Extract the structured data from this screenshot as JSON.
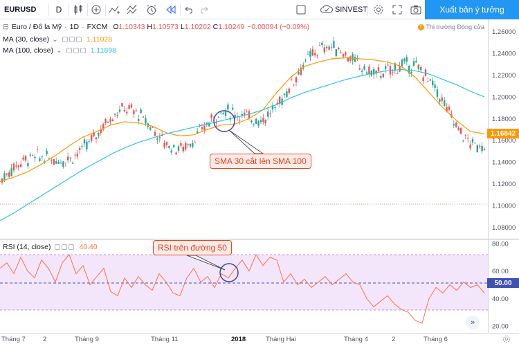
{
  "toolbar": {
    "symbol": "EURUSD",
    "interval": "D",
    "broker": "SINVEST",
    "publish_label": "Xuất bản ý tưởng",
    "icons": [
      "bar-style-icon",
      "add-compare-icon",
      "indicators-icon",
      "templates-icon",
      "alert-icon",
      "replay-icon",
      "undo-icon",
      "redo-icon",
      "layout-icon",
      "cloud-icon",
      "settings-icon",
      "fullscreen-icon",
      "snapshot-icon"
    ]
  },
  "legend": {
    "title": "Euro / Đô la Mỹ",
    "interval": "1D",
    "exchange": "FXCM",
    "ohlc": [
      {
        "k": "O",
        "v": "1.10343"
      },
      {
        "k": "H",
        "v": "1.10573"
      },
      {
        "k": "L",
        "v": "1.10202"
      },
      {
        "k": "C",
        "v": "1.10249"
      }
    ],
    "change": "−0.00094 (−0.09%)",
    "ma30": {
      "label": "MA (30, close)",
      "value": "1.11028",
      "color": "#ff9800"
    },
    "ma100": {
      "label": "MA (100, close)",
      "value": "1.11898",
      "color": "#26c6da"
    },
    "rsi": {
      "label": "RSI (14, close)",
      "value": "40.40",
      "color": "#ff7043"
    }
  },
  "market_status": "Thị trường Đóng cửa",
  "annotations": {
    "sma_cross": "SMA 30 cắt lên SMA 100",
    "rsi_above": "RSI trên đường 50"
  },
  "price_axis": {
    "ticks": [
      "1.26000",
      "1.24000",
      "1.22000",
      "1.20000",
      "1.18000",
      "1.16000",
      "1.14000",
      "1.12000",
      "1.10000",
      "1.08000"
    ],
    "tick_values": [
      1.26,
      1.24,
      1.22,
      1.2,
      1.18,
      1.16,
      1.14,
      1.12,
      1.1,
      1.08
    ],
    "last_price": "1.16842"
  },
  "rsi_axis": {
    "ticks": [
      "80.00",
      "60.00",
      "40.00",
      "20.00"
    ],
    "tick_values": [
      80,
      60,
      40,
      20
    ],
    "midline": "50.00"
  },
  "time_axis": [
    {
      "label": "Tháng 7",
      "bold": false
    },
    {
      "label": "2",
      "bold": false
    },
    {
      "label": "Tháng 9",
      "bold": false
    },
    {
      "label": "Tháng 11",
      "bold": false
    },
    {
      "label": "2018",
      "bold": true
    },
    {
      "label": "Tháng Hai",
      "bold": false
    },
    {
      "label": "Tháng 4",
      "bold": false
    },
    {
      "label": "2",
      "bold": false
    },
    {
      "label": "Tháng 6",
      "bold": false
    }
  ],
  "chart_data": [
    {
      "type": "line",
      "title": "Euro / Đô la Mỹ",
      "ylim": [
        1.07,
        1.27
      ],
      "series": [
        {
          "name": "MA (30, close)",
          "color": "#ff9800",
          "x": [
            0,
            20,
            40,
            60,
            80,
            100,
            120,
            140,
            160,
            180,
            200,
            220,
            240,
            260,
            280,
            300,
            320,
            340,
            360,
            380,
            400,
            420,
            440,
            460,
            480,
            500,
            520,
            540,
            560,
            580,
            600,
            620,
            640,
            660,
            680,
            700
          ],
          "values": [
            1.122,
            1.126,
            1.131,
            1.138,
            1.146,
            1.155,
            1.163,
            1.168,
            1.174,
            1.177,
            1.176,
            1.173,
            1.167,
            1.164,
            1.165,
            1.17,
            1.174,
            1.175,
            1.18,
            1.188,
            1.204,
            1.218,
            1.228,
            1.232,
            1.235,
            1.236,
            1.235,
            1.234,
            1.232,
            1.228,
            1.218,
            1.204,
            1.19,
            1.178,
            1.168,
            1.166
          ]
        },
        {
          "name": "MA (100, close)",
          "color": "#26c6da",
          "x": [
            0,
            20,
            40,
            60,
            80,
            100,
            120,
            140,
            160,
            180,
            200,
            220,
            240,
            260,
            280,
            300,
            320,
            340,
            360,
            380,
            400,
            420,
            440,
            460,
            480,
            500,
            520,
            540,
            560,
            580,
            600,
            620,
            640,
            660,
            680,
            700
          ],
          "values": [
            1.086,
            1.093,
            1.101,
            1.109,
            1.117,
            1.125,
            1.133,
            1.14,
            1.147,
            1.153,
            1.158,
            1.162,
            1.166,
            1.169,
            1.172,
            1.175,
            1.178,
            1.181,
            1.184,
            1.188,
            1.193,
            1.199,
            1.204,
            1.208,
            1.212,
            1.216,
            1.219,
            1.222,
            1.224,
            1.225,
            1.224,
            1.221,
            1.216,
            1.211,
            1.205,
            1.2
          ]
        }
      ]
    },
    {
      "type": "line",
      "title": "RSI (14, close)",
      "ylim": [
        15,
        82
      ],
      "series": [
        {
          "name": "RSI (14, close)",
          "color": "#ff7043",
          "x": [
            0,
            10,
            20,
            30,
            40,
            50,
            60,
            70,
            80,
            90,
            100,
            110,
            120,
            130,
            140,
            150,
            160,
            170,
            180,
            190,
            200,
            210,
            220,
            230,
            240,
            250,
            260,
            270,
            280,
            290,
            300,
            310,
            320,
            330,
            340,
            350,
            360,
            370,
            380,
            390,
            400,
            410,
            420,
            430,
            440,
            450,
            460,
            470,
            480,
            490,
            500,
            510,
            520,
            530,
            540,
            550,
            560,
            570,
            580,
            590,
            600,
            610,
            620,
            630,
            640,
            650,
            660,
            670,
            680,
            690,
            700
          ],
          "values": [
            62,
            66,
            58,
            70,
            60,
            55,
            68,
            62,
            52,
            66,
            72,
            58,
            64,
            50,
            56,
            62,
            45,
            42,
            55,
            48,
            56,
            50,
            46,
            58,
            52,
            44,
            42,
            55,
            62,
            52,
            56,
            48,
            58,
            55,
            62,
            68,
            60,
            72,
            64,
            70,
            68,
            52,
            58,
            50,
            54,
            48,
            52,
            56,
            50,
            54,
            58,
            52,
            50,
            40,
            34,
            38,
            42,
            36,
            32,
            30,
            24,
            22,
            40,
            48,
            44,
            50,
            46,
            52,
            48,
            50,
            44
          ]
        }
      ]
    }
  ]
}
